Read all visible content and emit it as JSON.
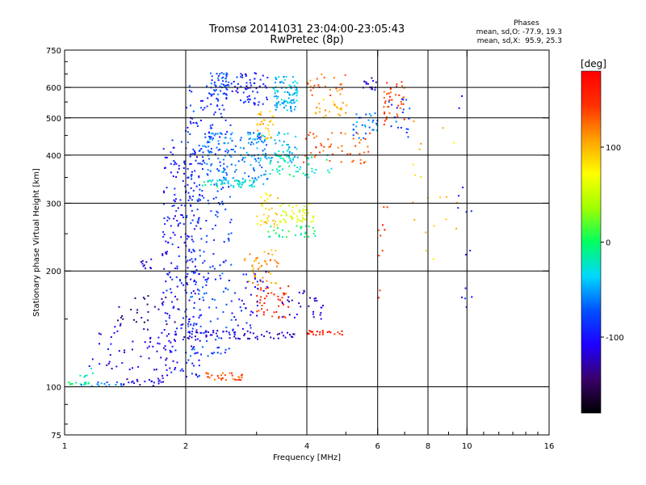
{
  "chart_data": {
    "type": "scatter",
    "title": "Tromsø 20141031 23:04:00-23:05:43",
    "subtitle": "RwPretec (8p)",
    "stats": {
      "heading": "Phases",
      "line1": "mean, sd,O: -77.9, 19.3",
      "line2": "mean, sd,X:  95.9, 25.3"
    },
    "xlabel": "Frequency [MHz]",
    "ylabel": "Stationary phase Virtual Height [km]",
    "x_scale": "log",
    "y_scale": "log",
    "xlim": [
      1,
      16
    ],
    "ylim": [
      75,
      750
    ],
    "xticks": [
      1,
      2,
      4,
      6,
      8,
      10,
      16
    ],
    "xtick_labels": [
      "1",
      "2",
      "4",
      "6",
      "8",
      "10",
      "16"
    ],
    "x_grid": [
      2,
      4,
      6,
      8,
      10
    ],
    "yticks": [
      75,
      100,
      200,
      300,
      400,
      500,
      600,
      750
    ],
    "ytick_labels": [
      "75",
      "100",
      "200",
      "300",
      "400",
      "500",
      "600",
      "750"
    ],
    "y_grid": [
      100,
      200,
      300,
      400,
      500,
      600
    ],
    "grid": true,
    "colorbar": {
      "label": "[deg]",
      "range": [
        -180,
        180
      ],
      "ticks": [
        100,
        0,
        -100
      ],
      "tick_labels": [
        "100",
        "0",
        "-100"
      ],
      "colors": [
        "#000000",
        "#3a006b",
        "#1e00ff",
        "#0050ff",
        "#00d8ff",
        "#00ff60",
        "#a0ff00",
        "#ffff00",
        "#ffa000",
        "#ff3000",
        "#ff0000"
      ]
    },
    "clusters": [
      {
        "x": [
          1.0,
          1.15
        ],
        "y": [
          101,
          103
        ],
        "phase": -10,
        "n": 14
      },
      {
        "x": [
          1.1,
          1.4
        ],
        "y": [
          100,
          104
        ],
        "phase": -60,
        "n": 14
      },
      {
        "x": [
          1.4,
          1.8
        ],
        "y": [
          100,
          105
        ],
        "phase": -115,
        "n": 22
      },
      {
        "x": [
          1.08,
          1.2
        ],
        "y": [
          106,
          114
        ],
        "phase": -25,
        "n": 6
      },
      {
        "x": [
          1.15,
          1.9
        ],
        "y": [
          110,
          145
        ],
        "phase": -115,
        "n": 60
      },
      {
        "x": [
          1.35,
          1.95
        ],
        "y": [
          145,
          175
        ],
        "phase": -135,
        "n": 30
      },
      {
        "x": [
          1.55,
          1.65
        ],
        "y": [
          200,
          215
        ],
        "phase": -120,
        "n": 10
      },
      {
        "x": [
          1.75,
          2.2
        ],
        "y": [
          105,
          440
        ],
        "phase": -100,
        "n": 260
      },
      {
        "x": [
          2.0,
          2.6
        ],
        "y": [
          120,
          440
        ],
        "phase": -80,
        "n": 190
      },
      {
        "x": [
          2.0,
          2.6
        ],
        "y": [
          440,
          640
        ],
        "phase": -90,
        "n": 70
      },
      {
        "x": [
          2.3,
          2.6
        ],
        "y": [
          570,
          655
        ],
        "phase": -75,
        "n": 40
      },
      {
        "x": [
          2.2,
          3.2
        ],
        "y": [
          335,
          460
        ],
        "phase": -60,
        "n": 150
      },
      {
        "x": [
          2.2,
          3.0
        ],
        "y": [
          330,
          345
        ],
        "phase": -25,
        "n": 50
      },
      {
        "x": [
          2.6,
          3.2
        ],
        "y": [
          540,
          655
        ],
        "phase": -95,
        "n": 60
      },
      {
        "x": [
          3.0,
          3.8
        ],
        "y": [
          380,
          460
        ],
        "phase": -40,
        "n": 60
      },
      {
        "x": [
          3.2,
          4.7
        ],
        "y": [
          350,
          400
        ],
        "phase": -20,
        "n": 50
      },
      {
        "x": [
          3.3,
          3.8
        ],
        "y": [
          520,
          640
        ],
        "phase": -45,
        "n": 90
      },
      {
        "x": [
          3.0,
          3.3
        ],
        "y": [
          440,
          520
        ],
        "phase": 95,
        "n": 30
      },
      {
        "x": [
          3.0,
          3.4
        ],
        "y": [
          260,
          320
        ],
        "phase": 85,
        "n": 35
      },
      {
        "x": [
          3.4,
          4.2
        ],
        "y": [
          265,
          300
        ],
        "phase": 60,
        "n": 50
      },
      {
        "x": [
          3.2,
          4.2
        ],
        "y": [
          245,
          262
        ],
        "phase": -5,
        "n": 30
      },
      {
        "x": [
          2.8,
          3.4
        ],
        "y": [
          185,
          230
        ],
        "phase": 110,
        "n": 45
      },
      {
        "x": [
          3.0,
          3.6
        ],
        "y": [
          150,
          185
        ],
        "phase": 150,
        "n": 45
      },
      {
        "x": [
          2.6,
          3.2
        ],
        "y": [
          140,
          200
        ],
        "phase": -100,
        "n": 40
      },
      {
        "x": [
          2.0,
          3.8
        ],
        "y": [
          133,
          140
        ],
        "phase": -120,
        "n": 60
      },
      {
        "x": [
          3.4,
          4.4
        ],
        "y": [
          150,
          180
        ],
        "phase": -120,
        "n": 30
      },
      {
        "x": [
          2.25,
          2.8
        ],
        "y": [
          104,
          109
        ],
        "phase": 135,
        "n": 30
      },
      {
        "x": [
          4.0,
          4.9
        ],
        "y": [
          136,
          140
        ],
        "phase": 160,
        "n": 25
      },
      {
        "x": [
          3.9,
          5.8
        ],
        "y": [
          380,
          460
        ],
        "phase": 130,
        "n": 50
      },
      {
        "x": [
          4.2,
          5.2
        ],
        "y": [
          500,
          560
        ],
        "phase": 100,
        "n": 25
      },
      {
        "x": [
          4.0,
          5.0
        ],
        "y": [
          570,
          655
        ],
        "phase": 125,
        "n": 25
      },
      {
        "x": [
          5.2,
          6.0
        ],
        "y": [
          440,
          520
        ],
        "phase": -60,
        "n": 30
      },
      {
        "x": [
          5.5,
          6.0
        ],
        "y": [
          590,
          640
        ],
        "phase": -120,
        "n": 15
      },
      {
        "x": [
          6.2,
          7.0
        ],
        "y": [
          480,
          630
        ],
        "phase": 140,
        "n": 40
      },
      {
        "x": [
          6.4,
          7.2
        ],
        "y": [
          440,
          560
        ],
        "phase": -80,
        "n": 20
      },
      {
        "x": [
          7.2,
          9.5
        ],
        "y": [
          190,
          520
        ],
        "phase": 95,
        "n": 20
      },
      {
        "x": [
          9.5,
          10.3
        ],
        "y": [
          160,
          600
        ],
        "phase": -100,
        "n": 14
      },
      {
        "x": [
          6.0,
          6.6
        ],
        "y": [
          160,
          300
        ],
        "phase": 150,
        "n": 10
      }
    ]
  }
}
